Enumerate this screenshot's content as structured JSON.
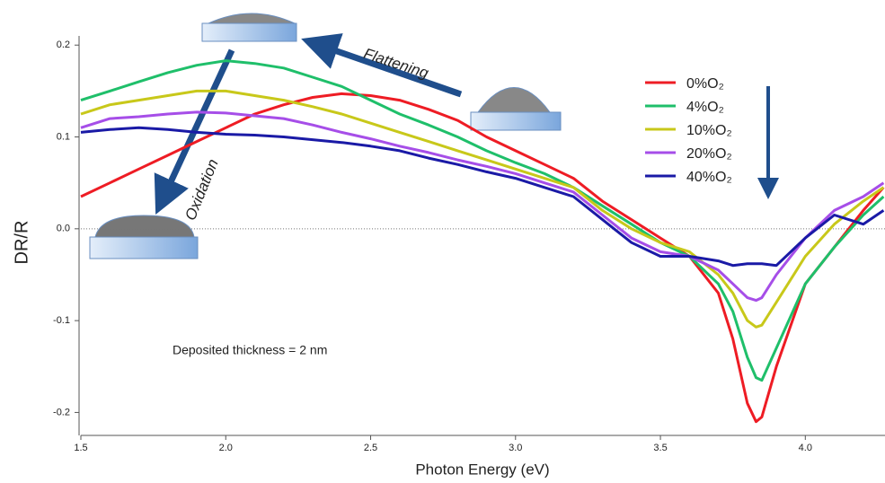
{
  "chart_data": {
    "type": "line",
    "x_label": "Photon Energy (eV)",
    "y_label": "DR/R",
    "annotations": [
      "Flattening",
      "Oxidation",
      "Deposited thickness = 2 nm"
    ],
    "x": [
      1.5,
      1.6,
      1.7,
      1.8,
      1.9,
      2.0,
      2.1,
      2.2,
      2.3,
      2.4,
      2.5,
      2.6,
      2.7,
      2.8,
      2.9,
      3.0,
      3.1,
      3.2,
      3.3,
      3.4,
      3.5,
      3.6,
      3.7,
      3.75,
      3.8,
      3.83,
      3.85,
      3.9,
      4.0,
      4.1,
      4.2,
      4.27
    ],
    "series": [
      {
        "name": "0%O₂",
        "color": "#ee1c24",
        "values": [
          0.035,
          0.05,
          0.065,
          0.08,
          0.095,
          0.11,
          0.125,
          0.135,
          0.143,
          0.147,
          0.145,
          0.14,
          0.13,
          0.118,
          0.1,
          0.085,
          0.07,
          0.055,
          0.03,
          0.01,
          -0.01,
          -0.03,
          -0.07,
          -0.12,
          -0.19,
          -0.21,
          -0.205,
          -0.15,
          -0.06,
          -0.02,
          0.02,
          0.045
        ]
      },
      {
        "name": "4%O₂",
        "color": "#1fbf6a",
        "values": [
          0.14,
          0.15,
          0.16,
          0.17,
          0.178,
          0.183,
          0.18,
          0.175,
          0.165,
          0.155,
          0.14,
          0.125,
          0.113,
          0.1,
          0.085,
          0.072,
          0.06,
          0.045,
          0.025,
          0.005,
          -0.015,
          -0.03,
          -0.06,
          -0.09,
          -0.14,
          -0.162,
          -0.165,
          -0.13,
          -0.06,
          -0.02,
          0.015,
          0.035
        ]
      },
      {
        "name": "10%O₂",
        "color": "#c8c81a",
        "values": [
          0.125,
          0.135,
          0.14,
          0.145,
          0.15,
          0.15,
          0.145,
          0.14,
          0.133,
          0.125,
          0.115,
          0.105,
          0.095,
          0.085,
          0.075,
          0.065,
          0.055,
          0.045,
          0.02,
          0.0,
          -0.015,
          -0.025,
          -0.05,
          -0.07,
          -0.1,
          -0.107,
          -0.105,
          -0.08,
          -0.03,
          0.005,
          0.03,
          0.045
        ]
      },
      {
        "name": "20%O₂",
        "color": "#a64ee8",
        "values": [
          0.11,
          0.12,
          0.122,
          0.125,
          0.127,
          0.126,
          0.123,
          0.12,
          0.113,
          0.105,
          0.098,
          0.09,
          0.083,
          0.075,
          0.068,
          0.06,
          0.05,
          0.04,
          0.015,
          -0.01,
          -0.025,
          -0.03,
          -0.045,
          -0.06,
          -0.075,
          -0.078,
          -0.075,
          -0.05,
          -0.01,
          0.02,
          0.035,
          0.05
        ]
      },
      {
        "name": "40%O₂",
        "color": "#1a1aa6",
        "values": [
          0.105,
          0.108,
          0.11,
          0.108,
          0.105,
          0.103,
          0.102,
          0.1,
          0.097,
          0.094,
          0.09,
          0.085,
          0.077,
          0.07,
          0.062,
          0.055,
          0.045,
          0.035,
          0.01,
          -0.015,
          -0.03,
          -0.03,
          -0.035,
          -0.04,
          -0.038,
          -0.038,
          -0.038,
          -0.04,
          -0.01,
          0.015,
          0.005,
          0.02
        ]
      }
    ],
    "xlim": [
      1.5,
      4.275
    ],
    "ylim": [
      -0.225,
      0.21
    ],
    "xticks": [
      1.5,
      {
        "value": 2,
        "label": "2.0"
      },
      2.5,
      {
        "value": 3,
        "label": "3.0"
      },
      3.5,
      {
        "value": 4,
        "label": "4.0"
      }
    ],
    "yticks": [
      0.2,
      0.1,
      {
        "value": 0,
        "label": "0.0"
      },
      -0.1,
      -0.2
    ],
    "zero_line": true
  }
}
